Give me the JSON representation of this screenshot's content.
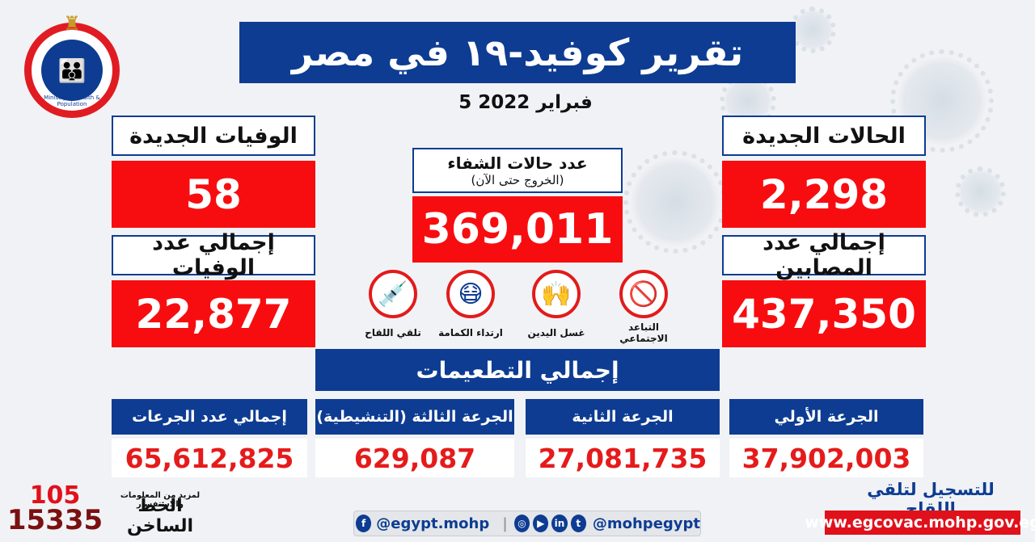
{
  "title": "تقرير كوفيد-١٩ في مصر",
  "date": "5 فبراير 2022",
  "new_cases": {
    "label": "الحالات الجديدة",
    "value": "2,298"
  },
  "new_deaths": {
    "label": "الوفيات الجديدة",
    "value": "58"
  },
  "recovered": {
    "label": "عدد حالات الشفاء",
    "sublabel": "(الخروج حتى الآن)",
    "value": "369,011"
  },
  "total_cases": {
    "label": "إجمالي عدد المصابين",
    "value": "437,350"
  },
  "total_deaths": {
    "label": "إجمالي عدد الوفيات",
    "value": "22,877"
  },
  "precautions": [
    {
      "icon": "no-crowd-icon",
      "label": "التباعد الاجتماعي"
    },
    {
      "icon": "hand-wash-icon",
      "label": "غسل اليدين"
    },
    {
      "icon": "face-mask-icon",
      "label": "ارتداء الكمامة"
    },
    {
      "icon": "vaccine-syringe-icon",
      "label": "تلقي اللقاح"
    }
  ],
  "vaccinations": {
    "title": "إجمالي التطعيمات",
    "doses": [
      {
        "label": "الجرعة الأولي",
        "value": "37,902,003"
      },
      {
        "label": "الجرعة الثانية",
        "value": "27,081,735"
      },
      {
        "label": "الجرعة الثالثة (التنشيطية)",
        "value": "629,087"
      },
      {
        "label": "إجمالي عدد الجرعات",
        "value": "65,612,825"
      }
    ]
  },
  "footer": {
    "facebook": "@egypt.mohp",
    "social": "@mohpegypt",
    "register_text": "للتسجيل لتلقي اللقاح",
    "website": "www.egcovac.mohp.gov.eg",
    "hotline_small": "لمزيد من المعلومات والاستفسار",
    "hotline_label": "الخط الساخن",
    "hotline_top": "105",
    "hotline_bottom": "15335"
  },
  "colors": {
    "navy": "#0d3c92",
    "red": "#f70d10"
  }
}
